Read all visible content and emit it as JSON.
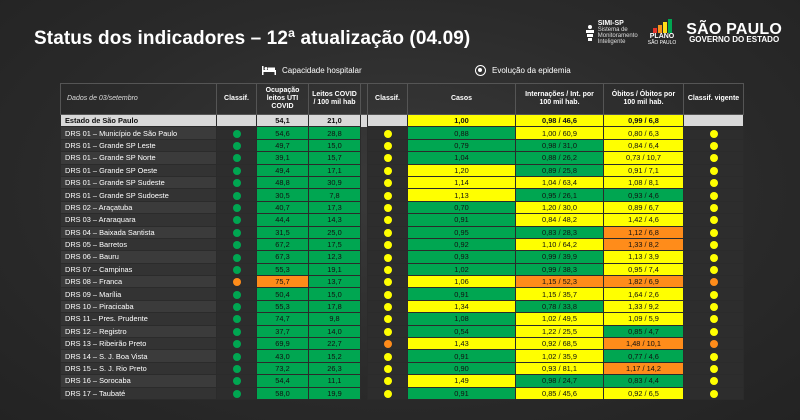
{
  "title": "Status dos indicadores – 12ª atualização (04.09)",
  "logos": {
    "simi_name": "SIMI-SP",
    "simi_sub": "Sistema de Monitoramento Inteligente",
    "plano_name": "PLANO",
    "plano_sub": "SÃO PAULO",
    "sp_name": "SÃO PAULO",
    "sp_sub": "GOVERNO DO ESTADO"
  },
  "groups": {
    "capacidade": "Capacidade hospitalar",
    "evolucao": "Evolução da epidemia"
  },
  "colors": {
    "g": "#00a651",
    "y": "#ffff00",
    "o": "#ff8c1a",
    "header_gray": "#d9d9d9"
  },
  "headers": {
    "date": "Dados de 03/setembro",
    "classif1": "Classif.",
    "ocupacao": "Ocupação leitos UTI COVID",
    "leitos": "Leitos COVID / 100 mil hab",
    "classif2": "Classif.",
    "casos": "Casos",
    "internacoes": "Internações / Int. por 100 mil hab.",
    "obitos": "Óbitos / Óbitos por 100 mil hab.",
    "vigente": "Classif. vigente"
  },
  "rows": [
    {
      "name": "Estado de São Paulo",
      "c1": "",
      "oc": "54,1",
      "oc_c": "g",
      "le": "21,0",
      "le_c": "g",
      "c2": "",
      "ca": "1,00",
      "ca_c": "y",
      "in": "0,98 / 46,6",
      "in_c": "y",
      "ob": "0,99 / 6,8",
      "ob_c": "y",
      "cv": ""
    },
    {
      "name": "DRS 01 – Município de São Paulo",
      "c1": "g",
      "oc": "54,6",
      "oc_c": "g",
      "le": "28,8",
      "le_c": "g",
      "c2": "y",
      "ca": "0,88",
      "ca_c": "g",
      "in": "1,00 / 60,9",
      "in_c": "y",
      "ob": "0,80 / 6,3",
      "ob_c": "y",
      "cv": "y"
    },
    {
      "name": "DRS 01 – Grande SP Leste",
      "c1": "g",
      "oc": "49,7",
      "oc_c": "g",
      "le": "15,0",
      "le_c": "g",
      "c2": "y",
      "ca": "0,79",
      "ca_c": "g",
      "in": "0,98 / 31,0",
      "in_c": "g",
      "ob": "0,84 / 6,4",
      "ob_c": "y",
      "cv": "y"
    },
    {
      "name": "DRS 01 – Grande SP Norte",
      "c1": "g",
      "oc": "39,1",
      "oc_c": "g",
      "le": "15,7",
      "le_c": "g",
      "c2": "y",
      "ca": "1,04",
      "ca_c": "g",
      "in": "0,88 / 26,2",
      "in_c": "g",
      "ob": "0,73 / 10,7",
      "ob_c": "y",
      "cv": "y"
    },
    {
      "name": "DRS 01 – Grande SP Oeste",
      "c1": "g",
      "oc": "49,4",
      "oc_c": "g",
      "le": "17,1",
      "le_c": "g",
      "c2": "y",
      "ca": "1,20",
      "ca_c": "y",
      "in": "0,89 / 25,8",
      "in_c": "g",
      "ob": "0,91 / 7,1",
      "ob_c": "y",
      "cv": "y"
    },
    {
      "name": "DRS 01 – Grande SP Sudeste",
      "c1": "g",
      "oc": "48,8",
      "oc_c": "g",
      "le": "30,9",
      "le_c": "g",
      "c2": "y",
      "ca": "1,14",
      "ca_c": "y",
      "in": "1,04 / 63,4",
      "in_c": "y",
      "ob": "1,08 / 8,1",
      "ob_c": "y",
      "cv": "y"
    },
    {
      "name": "DRS 01 – Grande SP Sudoeste",
      "c1": "g",
      "oc": "30,5",
      "oc_c": "g",
      "le": "7,8",
      "le_c": "g",
      "c2": "y",
      "ca": "1,13",
      "ca_c": "y",
      "in": "0,95 / 26,1",
      "in_c": "g",
      "ob": "0,93 / 4,6",
      "ob_c": "g",
      "cv": "y"
    },
    {
      "name": "DRS 02 – Araçatuba",
      "c1": "g",
      "oc": "40,7",
      "oc_c": "g",
      "le": "17,3",
      "le_c": "g",
      "c2": "y",
      "ca": "0,70",
      "ca_c": "g",
      "in": "1,20 / 30,0",
      "in_c": "y",
      "ob": "0,89 / 6,7",
      "ob_c": "y",
      "cv": "y"
    },
    {
      "name": "DRS 03 – Araraquara",
      "c1": "g",
      "oc": "44,4",
      "oc_c": "g",
      "le": "14,3",
      "le_c": "g",
      "c2": "y",
      "ca": "0,91",
      "ca_c": "g",
      "in": "0,84 / 48,2",
      "in_c": "y",
      "ob": "1,42 / 4,6",
      "ob_c": "y",
      "cv": "y"
    },
    {
      "name": "DRS 04 – Baixada Santista",
      "c1": "g",
      "oc": "31,5",
      "oc_c": "g",
      "le": "25,0",
      "le_c": "g",
      "c2": "y",
      "ca": "0,95",
      "ca_c": "g",
      "in": "0,83 / 28,3",
      "in_c": "g",
      "ob": "1,12 / 6,8",
      "ob_c": "o",
      "cv": "y"
    },
    {
      "name": "DRS 05 – Barretos",
      "c1": "g",
      "oc": "67,2",
      "oc_c": "g",
      "le": "17,5",
      "le_c": "g",
      "c2": "y",
      "ca": "0,92",
      "ca_c": "g",
      "in": "1,10 / 64,2",
      "in_c": "y",
      "ob": "1,33 / 8,2",
      "ob_c": "o",
      "cv": "y"
    },
    {
      "name": "DRS 06 – Bauru",
      "c1": "g",
      "oc": "67,3",
      "oc_c": "g",
      "le": "12,3",
      "le_c": "g",
      "c2": "y",
      "ca": "0,93",
      "ca_c": "g",
      "in": "0,99 / 39,9",
      "in_c": "g",
      "ob": "1,13 / 3,9",
      "ob_c": "y",
      "cv": "y"
    },
    {
      "name": "DRS 07 – Campinas",
      "c1": "g",
      "oc": "55,3",
      "oc_c": "g",
      "le": "19,1",
      "le_c": "g",
      "c2": "y",
      "ca": "1,02",
      "ca_c": "g",
      "in": "0,99 / 38,3",
      "in_c": "g",
      "ob": "0,95 / 7,4",
      "ob_c": "y",
      "cv": "y"
    },
    {
      "name": "DRS 08 – Franca",
      "c1": "o",
      "oc": "75,7",
      "oc_c": "o",
      "le": "13,7",
      "le_c": "g",
      "c2": "y",
      "ca": "1,06",
      "ca_c": "y",
      "in": "1,15 / 52,3",
      "in_c": "o",
      "ob": "1,82 / 6,9",
      "ob_c": "o",
      "cv": "o"
    },
    {
      "name": "DRS 09 – Marília",
      "c1": "g",
      "oc": "50,4",
      "oc_c": "g",
      "le": "15,0",
      "le_c": "g",
      "c2": "y",
      "ca": "0,91",
      "ca_c": "g",
      "in": "1,15 / 35,7",
      "in_c": "y",
      "ob": "1,64 / 2,6",
      "ob_c": "y",
      "cv": "y"
    },
    {
      "name": "DRS 10 – Piracicaba",
      "c1": "g",
      "oc": "55,3",
      "oc_c": "g",
      "le": "17,8",
      "le_c": "g",
      "c2": "y",
      "ca": "1,34",
      "ca_c": "y",
      "in": "0,78 / 33,8",
      "in_c": "g",
      "ob": "1,33 / 9,2",
      "ob_c": "y",
      "cv": "y"
    },
    {
      "name": "DRS 11 – Pres. Prudente",
      "c1": "g",
      "oc": "74,7",
      "oc_c": "g",
      "le": "9,8",
      "le_c": "g",
      "c2": "y",
      "ca": "1,08",
      "ca_c": "g",
      "in": "1,02 / 49,5",
      "in_c": "y",
      "ob": "1,09 / 5,9",
      "ob_c": "y",
      "cv": "y"
    },
    {
      "name": "DRS 12 – Registro",
      "c1": "g",
      "oc": "37,7",
      "oc_c": "g",
      "le": "14,0",
      "le_c": "g",
      "c2": "y",
      "ca": "0,54",
      "ca_c": "g",
      "in": "1,22 / 25,5",
      "in_c": "y",
      "ob": "0,85 / 4,7",
      "ob_c": "g",
      "cv": "y"
    },
    {
      "name": "DRS 13 – Ribeirão Preto",
      "c1": "g",
      "oc": "69,9",
      "oc_c": "g",
      "le": "22,7",
      "le_c": "g",
      "c2": "o",
      "ca": "1,43",
      "ca_c": "y",
      "in": "0,92 / 68,5",
      "in_c": "y",
      "ob": "1,48 / 10,1",
      "ob_c": "o",
      "cv": "o"
    },
    {
      "name": "DRS 14 – S. J. Boa Vista",
      "c1": "g",
      "oc": "43,0",
      "oc_c": "g",
      "le": "15,2",
      "le_c": "g",
      "c2": "y",
      "ca": "0,91",
      "ca_c": "g",
      "in": "1,02 / 35,9",
      "in_c": "y",
      "ob": "0,77 / 4,6",
      "ob_c": "g",
      "cv": "y"
    },
    {
      "name": "DRS 15 – S. J. Rio Preto",
      "c1": "g",
      "oc": "73,2",
      "oc_c": "g",
      "le": "26,3",
      "le_c": "g",
      "c2": "y",
      "ca": "0,90",
      "ca_c": "g",
      "in": "0,93 / 81,1",
      "in_c": "y",
      "ob": "1,17 / 14,2",
      "ob_c": "o",
      "cv": "y"
    },
    {
      "name": "DRS 16 – Sorocaba",
      "c1": "g",
      "oc": "54,4",
      "oc_c": "g",
      "le": "11,1",
      "le_c": "g",
      "c2": "y",
      "ca": "1,49",
      "ca_c": "y",
      "in": "0,98 / 24,7",
      "in_c": "g",
      "ob": "0,83 / 4,4",
      "ob_c": "g",
      "cv": "y"
    },
    {
      "name": "DRS 17 – Taubaté",
      "c1": "g",
      "oc": "58,0",
      "oc_c": "g",
      "le": "19,9",
      "le_c": "g",
      "c2": "y",
      "ca": "0,91",
      "ca_c": "g",
      "in": "0,85 / 45,6",
      "in_c": "y",
      "ob": "0,92 / 6,5",
      "ob_c": "y",
      "cv": "y"
    }
  ]
}
